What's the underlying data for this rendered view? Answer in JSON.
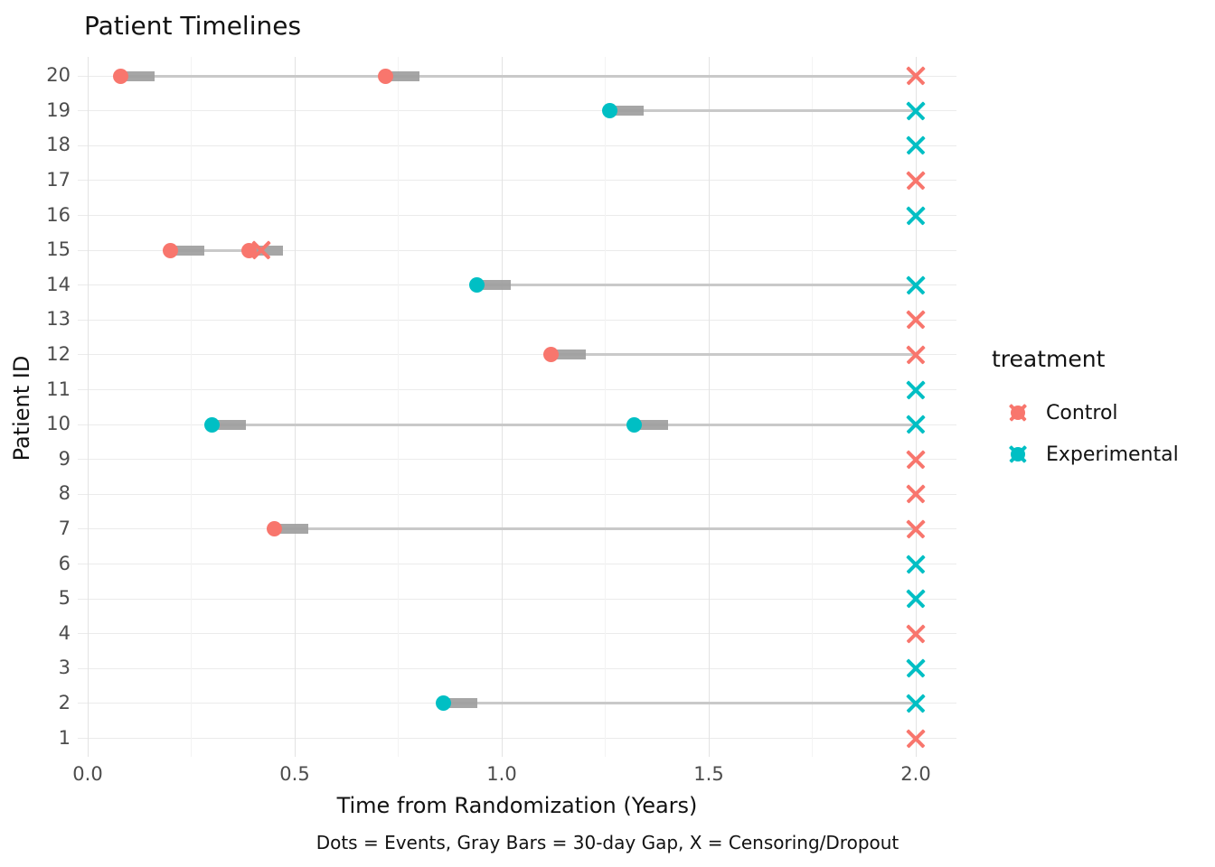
{
  "title": "Patient Timelines",
  "colors": {
    "control": "#F8766D",
    "experimental": "#00BFC4",
    "gap_bar": "#9E9E9E",
    "segment": "#C9C9C9",
    "grid_major": "#E3E3E3",
    "grid_minor": "#F3F3F3",
    "grid_horizontal": "#EBEBEB",
    "axis_text": "#4D4D4D",
    "text": "#121212"
  },
  "legend": {
    "title": "treatment",
    "position": "right",
    "entries": [
      {
        "label": "Control",
        "color": "#F8766D"
      },
      {
        "label": "Experimental",
        "color": "#00BFC4"
      }
    ]
  },
  "chart_data": {
    "type": "scatter",
    "subtype": "swimmer-timeline",
    "title": "Patient Timelines",
    "xlabel": "Time from Randomization (Years)",
    "ylabel": "Patient ID",
    "caption": "Dots = Events, Gray Bars = 30-day Gap, X = Censoring/Dropout",
    "xlim": [
      0.0,
      2.1
    ],
    "x_major_ticks": [
      0.0,
      0.5,
      1.0,
      1.5,
      2.0
    ],
    "x_tick_labels": [
      "0.0",
      "0.5",
      "1.0",
      "1.5",
      "2.0"
    ],
    "x_minor_ticks": [
      0.25,
      0.75,
      1.25,
      1.75
    ],
    "y_ticks": [
      1,
      2,
      3,
      4,
      5,
      6,
      7,
      8,
      9,
      10,
      11,
      12,
      13,
      14,
      15,
      16,
      17,
      18,
      19,
      20
    ],
    "grid": true,
    "gap_length_years": 0.082,
    "marker_legend": "dot = event, gray bar = 30-day gap, X = censoring/dropout",
    "patients": [
      {
        "id": 20,
        "treatment": "Control",
        "events": [
          0.08,
          0.72
        ],
        "censor": 2.0
      },
      {
        "id": 19,
        "treatment": "Experimental",
        "events": [
          1.26
        ],
        "censor": 2.0
      },
      {
        "id": 18,
        "treatment": "Experimental",
        "events": [],
        "censor": 2.0
      },
      {
        "id": 17,
        "treatment": "Control",
        "events": [],
        "censor": 2.0
      },
      {
        "id": 16,
        "treatment": "Experimental",
        "events": [],
        "censor": 2.0
      },
      {
        "id": 15,
        "treatment": "Control",
        "events": [
          0.2,
          0.39
        ],
        "censor": 0.42
      },
      {
        "id": 14,
        "treatment": "Experimental",
        "events": [
          0.94
        ],
        "censor": 2.0
      },
      {
        "id": 13,
        "treatment": "Control",
        "events": [],
        "censor": 2.0
      },
      {
        "id": 12,
        "treatment": "Control",
        "events": [
          1.12
        ],
        "censor": 2.0
      },
      {
        "id": 11,
        "treatment": "Experimental",
        "events": [],
        "censor": 2.0
      },
      {
        "id": 10,
        "treatment": "Experimental",
        "events": [
          0.3,
          1.32
        ],
        "censor": 2.0
      },
      {
        "id": 9,
        "treatment": "Control",
        "events": [],
        "censor": 2.0
      },
      {
        "id": 8,
        "treatment": "Control",
        "events": [],
        "censor": 2.0
      },
      {
        "id": 7,
        "treatment": "Control",
        "events": [
          0.45
        ],
        "censor": 2.0
      },
      {
        "id": 6,
        "treatment": "Experimental",
        "events": [],
        "censor": 2.0
      },
      {
        "id": 5,
        "treatment": "Experimental",
        "events": [],
        "censor": 2.0
      },
      {
        "id": 4,
        "treatment": "Control",
        "events": [],
        "censor": 2.0
      },
      {
        "id": 3,
        "treatment": "Experimental",
        "events": [],
        "censor": 2.0
      },
      {
        "id": 2,
        "treatment": "Experimental",
        "events": [
          0.86
        ],
        "censor": 2.0
      },
      {
        "id": 1,
        "treatment": "Control",
        "events": [],
        "censor": 2.0
      }
    ]
  }
}
